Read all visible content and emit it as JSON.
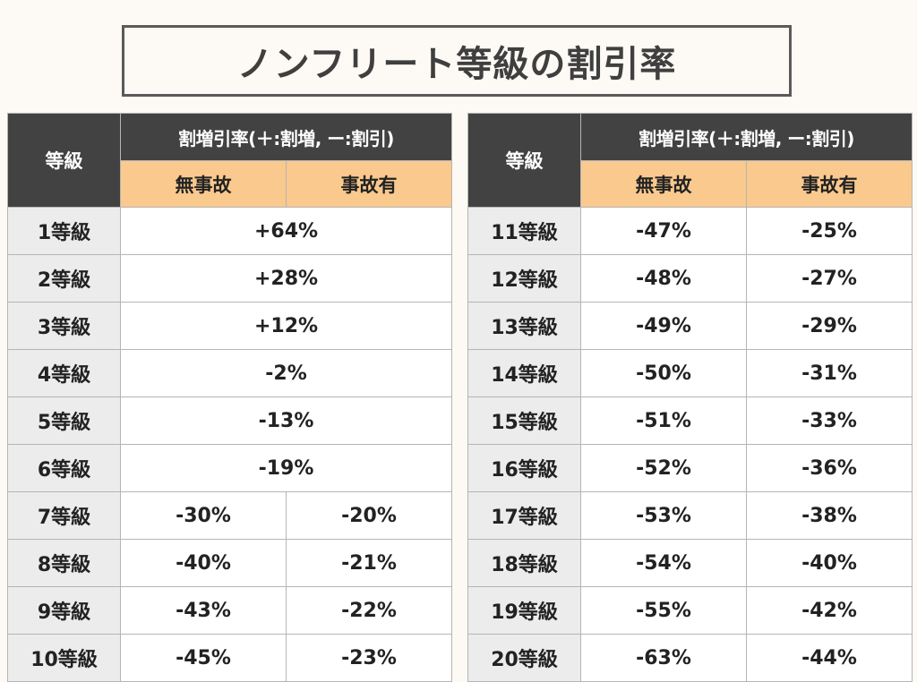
{
  "title": "ノンフリート等級の割引率",
  "header": {
    "grade": "等級",
    "rate": "割増引率(＋:割増, ー:割引)",
    "no_accident": "無事故",
    "accident": "事故有"
  },
  "left_rows": [
    {
      "grade": "1等級",
      "combined": "+64%"
    },
    {
      "grade": "2等級",
      "combined": "+28%"
    },
    {
      "grade": "3等級",
      "combined": "+12%"
    },
    {
      "grade": "4等級",
      "combined": "-2%"
    },
    {
      "grade": "5等級",
      "combined": "-13%"
    },
    {
      "grade": "6等級",
      "combined": "-19%"
    },
    {
      "grade": "7等級",
      "no_accident": "-30%",
      "accident": "-20%"
    },
    {
      "grade": "8等級",
      "no_accident": "-40%",
      "accident": "-21%"
    },
    {
      "grade": "9等級",
      "no_accident": "-43%",
      "accident": "-22%"
    },
    {
      "grade": "10等級",
      "no_accident": "-45%",
      "accident": "-23%"
    }
  ],
  "right_rows": [
    {
      "grade": "11等級",
      "no_accident": "-47%",
      "accident": "-25%"
    },
    {
      "grade": "12等級",
      "no_accident": "-48%",
      "accident": "-27%"
    },
    {
      "grade": "13等級",
      "no_accident": "-49%",
      "accident": "-29%"
    },
    {
      "grade": "14等級",
      "no_accident": "-50%",
      "accident": "-31%"
    },
    {
      "grade": "15等級",
      "no_accident": "-51%",
      "accident": "-33%"
    },
    {
      "grade": "16等級",
      "no_accident": "-52%",
      "accident": "-36%"
    },
    {
      "grade": "17等級",
      "no_accident": "-53%",
      "accident": "-38%"
    },
    {
      "grade": "18等級",
      "no_accident": "-54%",
      "accident": "-40%"
    },
    {
      "grade": "19等級",
      "no_accident": "-55%",
      "accident": "-42%"
    },
    {
      "grade": "20等級",
      "no_accident": "-63%",
      "accident": "-44%"
    }
  ]
}
